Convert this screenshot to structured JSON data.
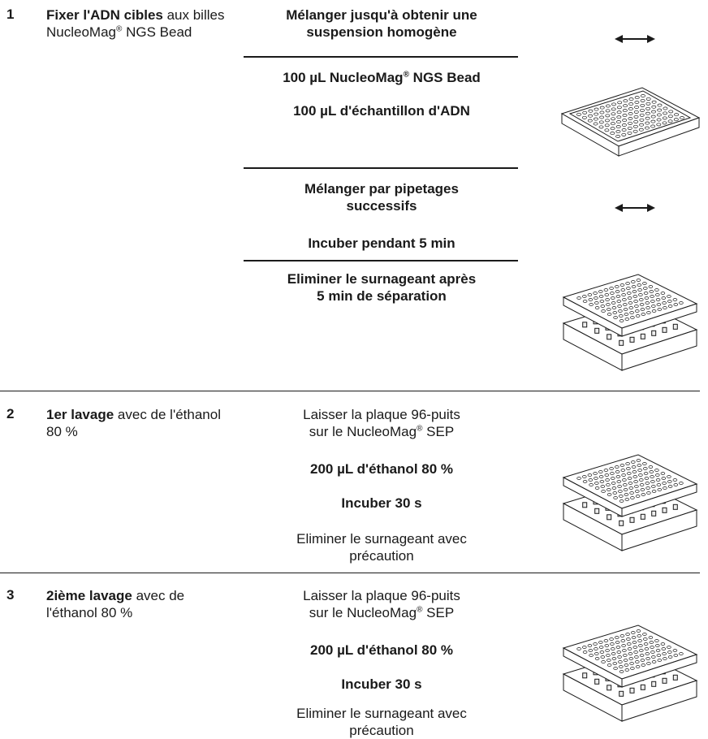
{
  "steps": [
    {
      "number": "1",
      "title_bold": "Fixer l'ADN cibles",
      "title_rest": " aux billes NucleoMag",
      "title_sup": "®",
      "title_tail": " NGS Bead",
      "actions": {
        "mix_1": "Mélanger jusqu'à obtenir une suspension homogène",
        "reagent_1_pre": "100 µL NucleoMag",
        "reagent_1_sup": "®",
        "reagent_1_post": " NGS Bead",
        "reagent_2": "100 µL d'échantillon d'ADN",
        "mix_2": "Mélanger par pipetages successifs",
        "incubate": "Incuber pendant 5 min",
        "remove": "Eliminer le surnageant après 5 min de séparation"
      }
    },
    {
      "number": "2",
      "title_bold": "1er lavage",
      "title_rest": " avec de l'éthanol 80 %",
      "actions": {
        "leave_pre": "Laisser la plaque 96-puits sur le NucleoMag",
        "leave_sup": "®",
        "leave_post": " SEP",
        "ethanol": "200 µL d'éthanol 80 %",
        "incubate": "Incuber 30 s",
        "remove": "Eliminer le surnageant avec précaution"
      }
    },
    {
      "number": "3",
      "title_bold": "2ième lavage",
      "title_rest": " avec de l'éthanol 80 %",
      "actions": {
        "leave_pre": "Laisser la plaque 96-puits sur le NucleoMag",
        "leave_sup": "®",
        "leave_post": " SEP",
        "ethanol": "200 µL d'éthanol 80 %",
        "incubate": "Incuber 30 s",
        "remove": "Eliminer le surnageant avec précaution"
      }
    }
  ],
  "icons": [
    "mix-arrow-icon",
    "plate-icon",
    "magnetic-separator-icon"
  ]
}
